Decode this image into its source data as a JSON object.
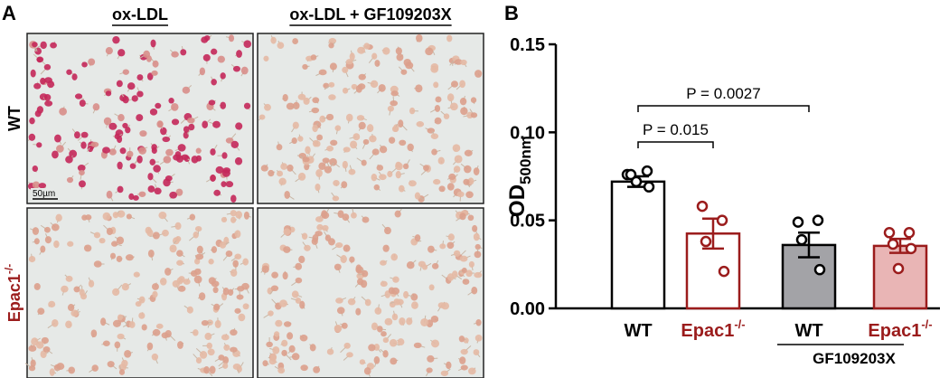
{
  "panel_a": {
    "label": "A",
    "columns": [
      "ox-LDL",
      "ox-LDL + GF109203X"
    ],
    "rows": [
      "WT",
      "Epac1"
    ],
    "row_superscripts": [
      null,
      "-/-"
    ],
    "scale_bar": "50µm"
  },
  "chart_data": {
    "type": "bar",
    "panel_label": "B",
    "y_label": "OD",
    "y_label_subscript": "500nm",
    "categories": [
      "WT",
      "Epac1",
      "WT",
      "Epac1"
    ],
    "category_superscripts": [
      null,
      "-/-",
      null,
      "-/-"
    ],
    "values": [
      0.072,
      0.0425,
      0.036,
      0.0355
    ],
    "errors": [
      0.003,
      0.0085,
      0.007,
      0.004
    ],
    "points": [
      [
        0.076,
        0.078,
        0.076,
        0.069,
        0.072
      ],
      [
        0.058,
        0.05,
        0.038,
        0.021
      ],
      [
        0.049,
        0.05,
        0.039,
        0.022
      ],
      [
        0.043,
        0.043,
        0.0365,
        0.034,
        0.0226
      ]
    ],
    "fill_colors": [
      "#ffffff",
      "#ffffff",
      "#a3a3a7",
      "#e9b5b5"
    ],
    "edge_colors": [
      "#000000",
      "#9b1c1c",
      "#000000",
      "#9b1c1c"
    ],
    "ylim": [
      0,
      0.15
    ],
    "yticks": [
      {
        "value": 0,
        "label": "0.00"
      },
      {
        "value": 0.05,
        "label": "0.05"
      },
      {
        "value": 0.1,
        "label": "0.10"
      },
      {
        "value": 0.15,
        "label": "0.15"
      }
    ],
    "annotations": [
      "P = 0.015",
      "P = 0.0027"
    ],
    "group_label": "GF109203X"
  }
}
